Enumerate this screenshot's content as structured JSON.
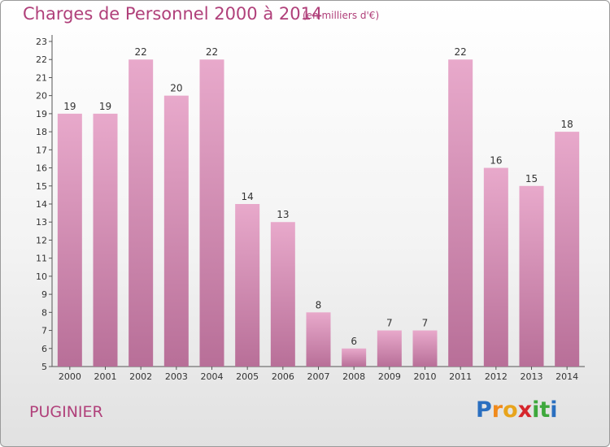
{
  "title": "Charges de Personnel 2000 à 2014",
  "unit_note": "(en milliers d'€)",
  "commune": "PUGINIER",
  "logo": {
    "text": "Proxiti",
    "letters": [
      {
        "char": "P",
        "color": "#2a6fc0"
      },
      {
        "char": "r",
        "color": "#f08a1c"
      },
      {
        "char": "o",
        "color": "#e8a41c"
      },
      {
        "char": "x",
        "color": "#d6262c"
      },
      {
        "char": "i",
        "color": "#3ea83c"
      },
      {
        "char": "t",
        "color": "#3ea83c"
      },
      {
        "char": "i",
        "color": "#2a6fc0"
      }
    ]
  },
  "chart_data": {
    "type": "bar",
    "title": "Charges de Personnel 2000 à 2014",
    "subtitle": "(en milliers d'€)",
    "xlabel": "",
    "ylabel": "",
    "categories": [
      "2000",
      "2001",
      "2002",
      "2003",
      "2004",
      "2005",
      "2006",
      "2007",
      "2008",
      "2009",
      "2010",
      "2011",
      "2012",
      "2013",
      "2014"
    ],
    "values": [
      19,
      19,
      22,
      20,
      22,
      14,
      13,
      8,
      6,
      7,
      7,
      22,
      16,
      15,
      18
    ],
    "ylim": [
      5,
      23
    ],
    "yticks": [
      5,
      6,
      7,
      8,
      9,
      10,
      11,
      12,
      13,
      14,
      15,
      16,
      17,
      18,
      19,
      20,
      21,
      22,
      23
    ],
    "grid": false,
    "legend": "none",
    "bar_color": "#d48ab2"
  }
}
